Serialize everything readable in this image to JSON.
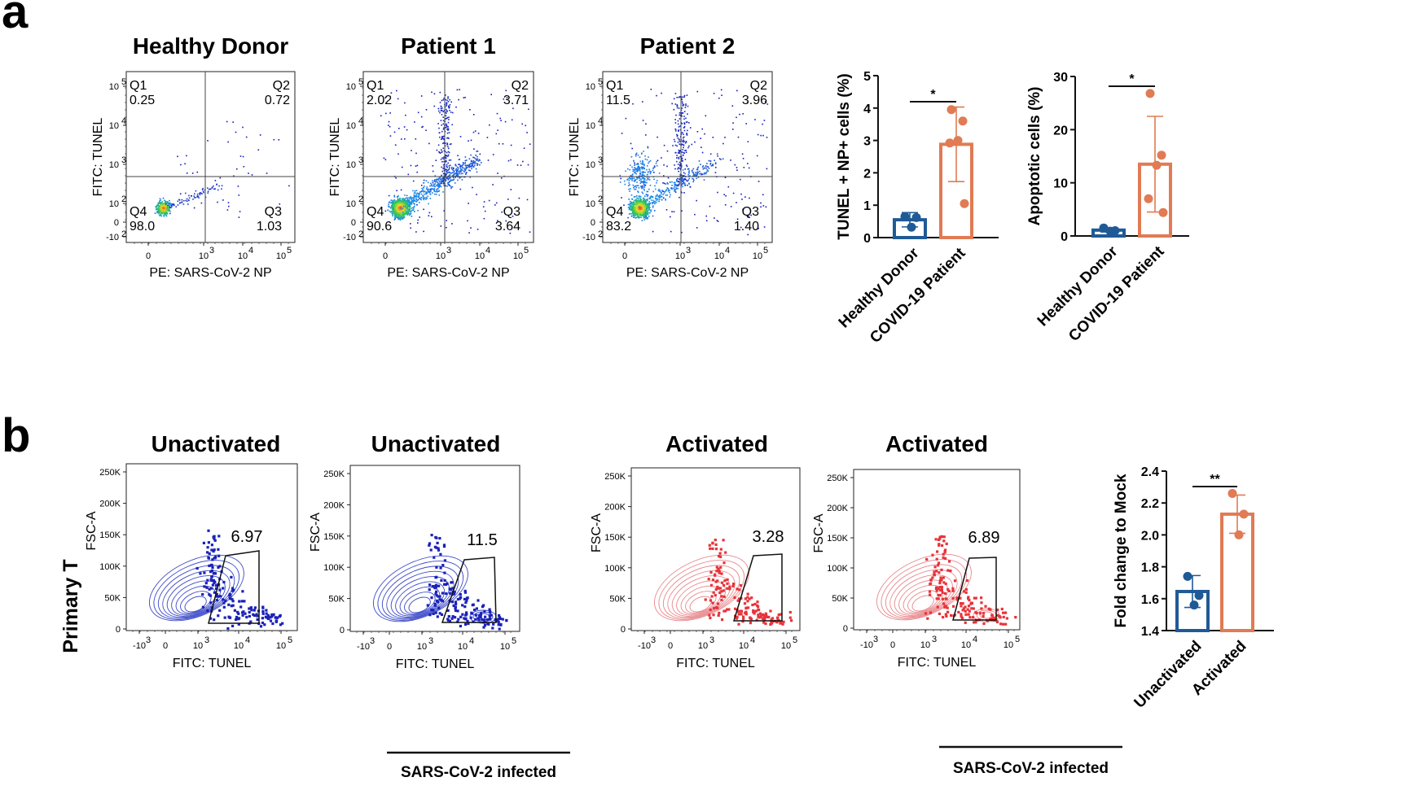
{
  "figure": {
    "panel_a_letter": "a",
    "panel_b_letter": "b",
    "primary_label": "Primary T",
    "infected_label": "SARS-CoV-2 infected"
  },
  "colors": {
    "healthy": "#1f5a96",
    "covid": "#e07b54",
    "dots_blue": "#1a22b8",
    "dots_red": "#e8333a",
    "contour_blue": "#3a48c8",
    "contour_red": "#e8888c"
  },
  "chart_data": [
    {
      "type": "scatter",
      "title": "Healthy Donor",
      "xlabel": "PE: SARS-CoV-2 NP",
      "ylabel": "FITC: TUNEL",
      "scale": "biexponential",
      "quadrants": [
        {
          "name": "Q1",
          "value": "0.25"
        },
        {
          "name": "Q2",
          "value": "0.72"
        },
        {
          "name": "Q3",
          "value": "1.03"
        },
        {
          "name": "Q4",
          "value": "98.0"
        }
      ]
    },
    {
      "type": "scatter",
      "title": "Patient 1",
      "xlabel": "PE: SARS-CoV-2 NP",
      "ylabel": "FITC: TUNEL",
      "scale": "biexponential",
      "quadrants": [
        {
          "name": "Q1",
          "value": "2.02"
        },
        {
          "name": "Q2",
          "value": "3.71"
        },
        {
          "name": "Q3",
          "value": "3.64"
        },
        {
          "name": "Q4",
          "value": "90.6"
        }
      ]
    },
    {
      "type": "scatter",
      "title": "Patient 2",
      "xlabel": "PE: SARS-CoV-2 NP",
      "ylabel": "FITC: TUNEL",
      "scale": "biexponential",
      "quadrants": [
        {
          "name": "Q1",
          "value": "11.5"
        },
        {
          "name": "Q2",
          "value": "3.96"
        },
        {
          "name": "Q3",
          "value": "1.40"
        },
        {
          "name": "Q4",
          "value": "83.2"
        }
      ]
    },
    {
      "type": "bar",
      "ylabel": "TUNEL + NP+ cells (%)",
      "categories": [
        "Healthy Donor",
        "COVID-19 Patient"
      ],
      "ylim": [
        0,
        5
      ],
      "yticks": [
        0,
        1,
        2,
        3,
        4,
        5
      ],
      "means": [
        0.55,
        2.88
      ],
      "errors": [
        0.22,
        1.15
      ],
      "points": [
        [
          0.65,
          0.62,
          0.32
        ],
        [
          3.95,
          3.6,
          3.0,
          2.92,
          1.05
        ]
      ],
      "significance": "*"
    },
    {
      "type": "bar",
      "ylabel": "Apoptotic cells (%)",
      "categories": [
        "Healthy Donor",
        "COVID-19 Patient"
      ],
      "ylim": [
        0,
        30
      ],
      "yticks": [
        0,
        10,
        20,
        30
      ],
      "means": [
        1.1,
        13.5
      ],
      "errors": [
        0.35,
        9.0
      ],
      "points": [
        [
          1.5,
          1.0,
          0.9
        ],
        [
          26.8,
          15.2,
          13.3,
          7.0,
          4.4
        ]
      ],
      "significance": "*"
    },
    {
      "type": "scatter",
      "title": "Unactivated",
      "xlabel": "FITC: TUNEL",
      "ylabel": "FSC-A",
      "gate_value": "6.97"
    },
    {
      "type": "scatter",
      "title": "Unactivated",
      "xlabel": "FITC: TUNEL",
      "ylabel": "FSC-A",
      "gate_value": "11.5"
    },
    {
      "type": "scatter",
      "title": "Activated",
      "xlabel": "FITC: TUNEL",
      "ylabel": "FSC-A",
      "gate_value": "3.28"
    },
    {
      "type": "scatter",
      "title": "Activated",
      "xlabel": "FITC: TUNEL",
      "ylabel": "FSC-A",
      "gate_value": "6.89"
    },
    {
      "type": "bar",
      "ylabel": "Fold change to Mock",
      "categories": [
        "Unactivated",
        "Activated"
      ],
      "ylim": [
        1.4,
        2.4
      ],
      "yticks": [
        1.4,
        1.6,
        1.8,
        2.0,
        2.2,
        2.4
      ],
      "ytick_labels": [
        "1.4",
        "1.6",
        "1.8",
        "2.0",
        "2.2",
        "2.4"
      ],
      "means": [
        1.645,
        2.13
      ],
      "errors": [
        0.1,
        0.12
      ],
      "points": [
        [
          1.74,
          1.62,
          1.56
        ],
        [
          2.26,
          2.13,
          2.0
        ]
      ],
      "significance": "**"
    }
  ],
  "axis_ticks": {
    "log_x": [
      "0",
      "10",
      "10",
      "10"
    ],
    "log_x_exp": [
      "3",
      "4",
      "5"
    ],
    "log_y_base": [
      "10",
      "10",
      "10",
      "10",
      "0",
      "-10"
    ],
    "log_y_exp": [
      "5",
      "4",
      "3",
      "2",
      "2"
    ],
    "fsc_y": [
      "250K",
      "200K",
      "150K",
      "100K",
      "50K",
      "0"
    ],
    "tunel_x_base": [
      "-10",
      "0",
      "10",
      "10",
      "10"
    ],
    "tunel_x_exp": [
      "3",
      "3",
      "4",
      "5"
    ]
  }
}
